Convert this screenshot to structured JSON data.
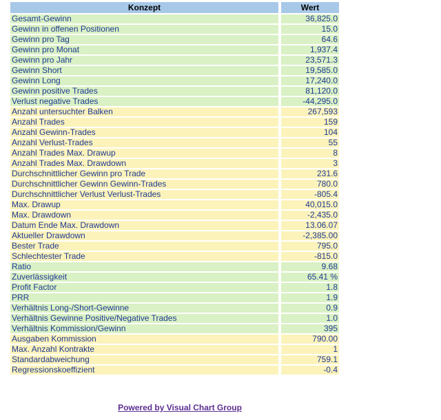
{
  "colors": {
    "header_bg": "#a8c8e8",
    "green_row": "#d9f1c4",
    "yellow_row": "#fcf3bb",
    "cell_text": "#1f3a93",
    "header_text": "#000000",
    "link": "#5c2d91",
    "page_bg": "#ffffff"
  },
  "table": {
    "headers": [
      "Konzept",
      "Wert"
    ],
    "rows": [
      {
        "label": "Gesamt-Gewinn",
        "value": "36,825.0",
        "tone": "green"
      },
      {
        "label": "Gewinn in offenen Positionen",
        "value": "15.0",
        "tone": "green"
      },
      {
        "label": "Gewinn pro Tag",
        "value": "64.6",
        "tone": "green"
      },
      {
        "label": "Gewinn pro Monat",
        "value": "1,937.4",
        "tone": "green"
      },
      {
        "label": "Gewinn pro Jahr",
        "value": "23,571.3",
        "tone": "green"
      },
      {
        "label": "Gewinn Short",
        "value": "19,585.0",
        "tone": "green"
      },
      {
        "label": "Gewinn Long",
        "value": "17,240.0",
        "tone": "green"
      },
      {
        "label": "Gewinn positive Trades",
        "value": "81,120.0",
        "tone": "green"
      },
      {
        "label": "Verlust negative Trades",
        "value": "-44,295.0",
        "tone": "green"
      },
      {
        "label": "Anzahl untersuchter Balken",
        "value": "267,593",
        "tone": "yellow"
      },
      {
        "label": "Anzahl Trades",
        "value": "159",
        "tone": "yellow"
      },
      {
        "label": "Anzahl Gewinn-Trades",
        "value": "104",
        "tone": "yellow"
      },
      {
        "label": "Anzahl Verlust-Trades",
        "value": "55",
        "tone": "yellow"
      },
      {
        "label": "Anzahl Trades Max. Drawup",
        "value": "8",
        "tone": "yellow"
      },
      {
        "label": "Anzahl Trades Max. Drawdown",
        "value": "3",
        "tone": "yellow"
      },
      {
        "label": "Durchschnittlicher Gewinn pro Trade",
        "value": "231.6",
        "tone": "yellow"
      },
      {
        "label": "Durchschnittlicher Gewinn Gewinn-Trades",
        "value": "780.0",
        "tone": "yellow"
      },
      {
        "label": "Durchschnittlicher Verlust Verlust-Trades",
        "value": "-805.4",
        "tone": "yellow"
      },
      {
        "label": "Max. Drawup",
        "value": "40,015.0",
        "tone": "yellow"
      },
      {
        "label": "Max. Drawdown",
        "value": "-2,435.0",
        "tone": "yellow"
      },
      {
        "label": "Datum Ende Max. Drawdown",
        "value": "13.06.07",
        "tone": "yellow"
      },
      {
        "label": "Aktueller Drawdown",
        "value": "-2,385.00",
        "tone": "yellow"
      },
      {
        "label": "Bester Trade",
        "value": "795.0",
        "tone": "yellow"
      },
      {
        "label": "Schlechtester Trade",
        "value": "-815.0",
        "tone": "yellow"
      },
      {
        "label": "Ratio",
        "value": "9.68",
        "tone": "green"
      },
      {
        "label": "Zuverlässigkeit",
        "value": "65.41 %",
        "tone": "green"
      },
      {
        "label": "Profit Factor",
        "value": "1.8",
        "tone": "green"
      },
      {
        "label": "PRR",
        "value": "1.9",
        "tone": "green"
      },
      {
        "label": "Verhältnis Long-/Short-Gewinne",
        "value": "0.9",
        "tone": "green"
      },
      {
        "label": "Verhältnis Gewinne Positive/Negative Trades",
        "value": "1.0",
        "tone": "green"
      },
      {
        "label": "Verhältnis Kommission/Gewinn",
        "value": "395",
        "tone": "green"
      },
      {
        "label": "Ausgaben Kommission",
        "value": "790.00",
        "tone": "yellow"
      },
      {
        "label": "Max. Anzahl Kontrakte",
        "value": "1",
        "tone": "yellow"
      },
      {
        "label": "Standardabweichung",
        "value": "759.1",
        "tone": "yellow"
      },
      {
        "label": "Regressionskoeffizient",
        "value": "-0.4",
        "tone": "yellow"
      }
    ]
  },
  "footer": {
    "link_label": "Powered by Visual Chart Group"
  }
}
